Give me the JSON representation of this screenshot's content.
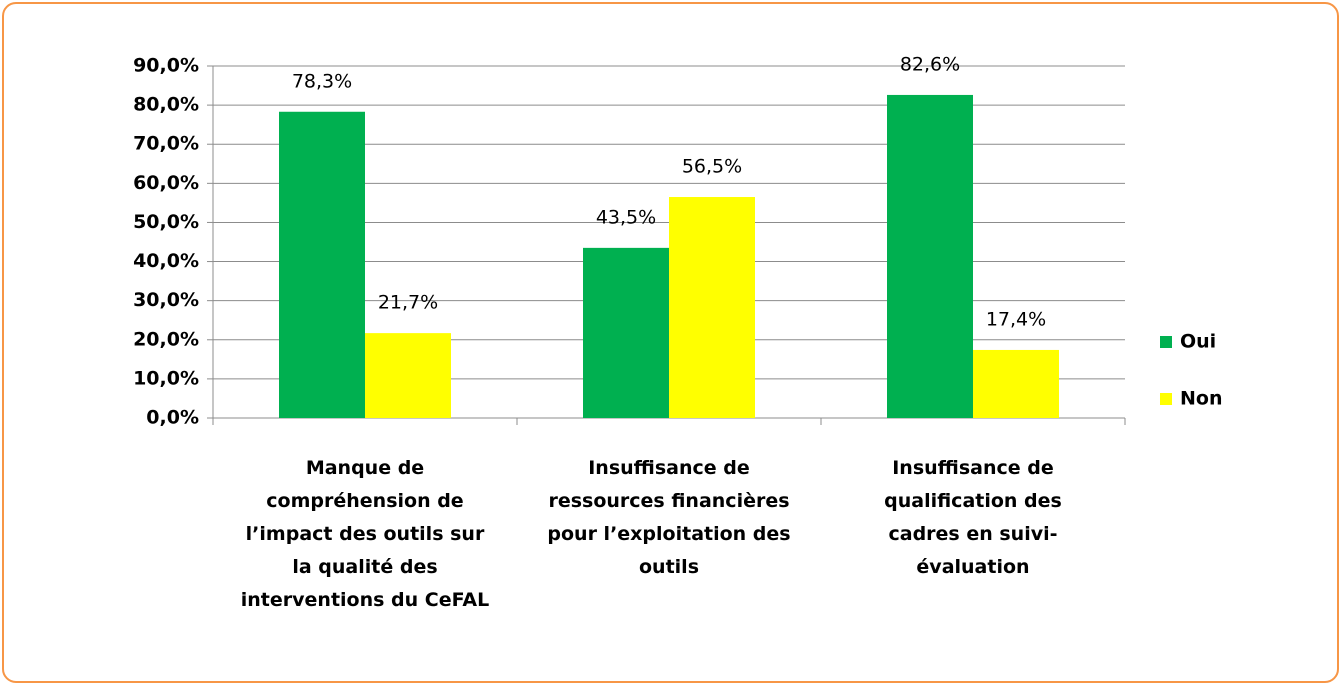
{
  "chart_data": {
    "type": "bar",
    "categories": [
      "Manque de compréhension de l’impact des outils sur la qualité des interventions du CeFAL",
      "Insuffisance de ressources financières pour l’exploitation des outils",
      "Insuffisance de qualification des cadres en suivi-évaluation"
    ],
    "series": [
      {
        "name": "Oui",
        "color": "#00b050",
        "values": [
          78.3,
          43.5,
          82.6
        ],
        "value_labels": [
          "78,3%",
          "43,5%",
          "82,6%"
        ]
      },
      {
        "name": "Non",
        "color": "#ffff00",
        "values": [
          21.7,
          56.5,
          17.4
        ],
        "value_labels": [
          "21,7%",
          "56,5%",
          "17,4%"
        ]
      }
    ],
    "ylim": [
      0,
      90
    ],
    "yticks": [
      {
        "value": 0,
        "label": "0,0%"
      },
      {
        "value": 10,
        "label": "10,0%"
      },
      {
        "value": 20,
        "label": "20,0%"
      },
      {
        "value": 30,
        "label": "30,0%"
      },
      {
        "value": 40,
        "label": "40,0%"
      },
      {
        "value": 50,
        "label": "50,0%"
      },
      {
        "value": 60,
        "label": "60,0%"
      },
      {
        "value": 70,
        "label": "70,0%"
      },
      {
        "value": 80,
        "label": "80,0%"
      },
      {
        "value": 90,
        "label": "90,0%"
      }
    ],
    "grid": true,
    "legend": "right"
  }
}
